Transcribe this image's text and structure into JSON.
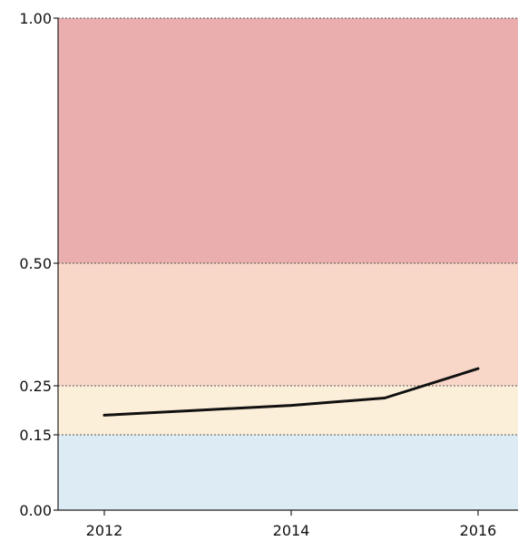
{
  "chart_data": {
    "type": "line",
    "title": "",
    "xlabel": "",
    "ylabel": "",
    "x": [
      2012,
      2013,
      2014,
      2015,
      2016
    ],
    "series": [
      {
        "values": [
          0.19,
          0.2,
          0.21,
          0.225,
          0.285
        ],
        "color": "#111111"
      }
    ],
    "xlim": [
      2011.5,
      2016.4
    ],
    "ylim": [
      0,
      1
    ],
    "x_ticks": [
      "2012",
      "2014",
      "2016"
    ],
    "y_ticks": [
      "0.00",
      "0.15",
      "0.25",
      "0.50",
      "1.00"
    ],
    "bands": [
      {
        "from": 0.0,
        "to": 0.15,
        "color": "#ddebf4"
      },
      {
        "from": 0.15,
        "to": 0.25,
        "color": "#fcefd9"
      },
      {
        "from": 0.25,
        "to": 0.5,
        "color": "#f8d6c8"
      },
      {
        "from": 0.5,
        "to": 1.0,
        "color": "#ebaeae"
      }
    ],
    "grid": true,
    "legend": "none"
  }
}
